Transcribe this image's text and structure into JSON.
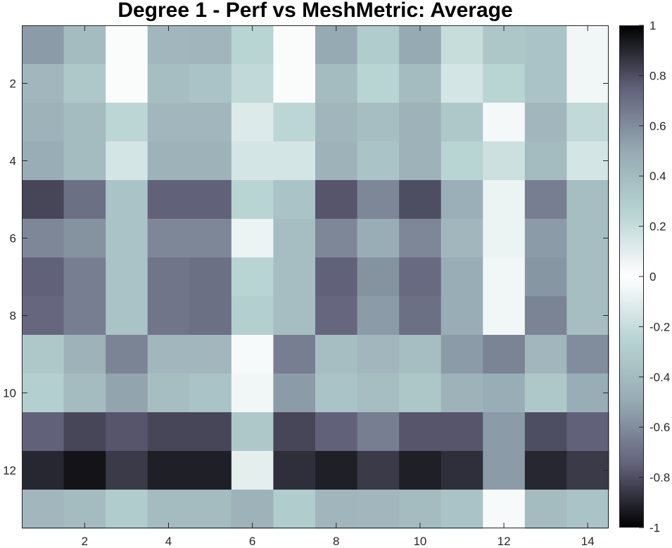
{
  "chart_data": {
    "type": "heatmap",
    "title": "Degree 1 - Perf vs MeshMetric: Average",
    "x_ticks": [
      2,
      4,
      6,
      8,
      10,
      12,
      14
    ],
    "y_ticks": [
      2,
      4,
      6,
      8,
      10,
      12
    ],
    "xlim": [
      0.5,
      14.5
    ],
    "ylim": [
      0.5,
      13.5
    ],
    "y_direction": "reverse",
    "colorbar": {
      "limits": [
        -1,
        1
      ],
      "ticks": [
        1,
        0.8,
        0.6,
        0.4,
        0.2,
        0,
        -0.2,
        -0.4,
        -0.6,
        -0.8,
        -1
      ],
      "location": "right"
    },
    "colormap": [
      "#000000",
      "#62617a",
      "#96aab3",
      "#b8d4d3",
      "#ffffff",
      "#b8d4d3",
      "#96aab3",
      "#62617a",
      "#000000"
    ],
    "rows": [
      [
        0.55,
        0.4,
        0.02,
        0.42,
        0.43,
        0.25,
        0.02,
        0.5,
        0.3,
        0.5,
        0.2,
        0.33,
        0.35,
        0.05
      ],
      [
        0.42,
        0.32,
        0.02,
        0.38,
        0.35,
        0.22,
        0.02,
        0.4,
        0.25,
        0.4,
        0.15,
        0.25,
        0.35,
        0.05
      ],
      [
        0.45,
        0.4,
        0.24,
        0.42,
        0.42,
        0.12,
        0.24,
        0.43,
        0.38,
        0.45,
        0.32,
        0.04,
        0.42,
        0.22
      ],
      [
        0.48,
        0.4,
        0.15,
        0.45,
        0.45,
        0.15,
        0.15,
        0.45,
        0.35,
        0.45,
        0.25,
        0.18,
        0.4,
        0.15
      ],
      [
        0.82,
        0.7,
        0.35,
        0.75,
        0.75,
        0.25,
        0.35,
        0.78,
        0.62,
        0.8,
        0.47,
        0.07,
        0.65,
        0.38
      ],
      [
        0.62,
        0.58,
        0.35,
        0.62,
        0.62,
        0.07,
        0.38,
        0.62,
        0.48,
        0.62,
        0.42,
        0.07,
        0.55,
        0.38
      ],
      [
        0.75,
        0.65,
        0.35,
        0.68,
        0.7,
        0.25,
        0.38,
        0.75,
        0.58,
        0.72,
        0.48,
        0.05,
        0.57,
        0.38
      ],
      [
        0.73,
        0.65,
        0.35,
        0.68,
        0.7,
        0.28,
        0.38,
        0.73,
        0.55,
        0.7,
        0.48,
        0.05,
        0.63,
        0.38
      ],
      [
        0.32,
        0.45,
        0.63,
        0.42,
        0.42,
        0.03,
        0.65,
        0.38,
        0.42,
        0.38,
        0.55,
        0.63,
        0.42,
        0.6
      ],
      [
        0.28,
        0.4,
        0.52,
        0.38,
        0.35,
        0.05,
        0.55,
        0.35,
        0.38,
        0.33,
        0.45,
        0.48,
        0.32,
        0.48
      ],
      [
        -0.75,
        -0.82,
        -0.78,
        -0.82,
        -0.82,
        -0.32,
        -0.82,
        -0.75,
        -0.65,
        -0.78,
        -0.78,
        -0.55,
        -0.8,
        -0.75
      ],
      [
        -0.9,
        -0.95,
        -0.85,
        -0.92,
        -0.92,
        -0.1,
        -0.88,
        -0.92,
        -0.85,
        -0.92,
        -0.88,
        -0.55,
        -0.9,
        -0.85
      ],
      [
        0.42,
        0.4,
        0.3,
        0.4,
        0.4,
        0.45,
        0.3,
        0.43,
        0.42,
        0.4,
        0.35,
        0.03,
        0.4,
        0.35
      ]
    ]
  }
}
